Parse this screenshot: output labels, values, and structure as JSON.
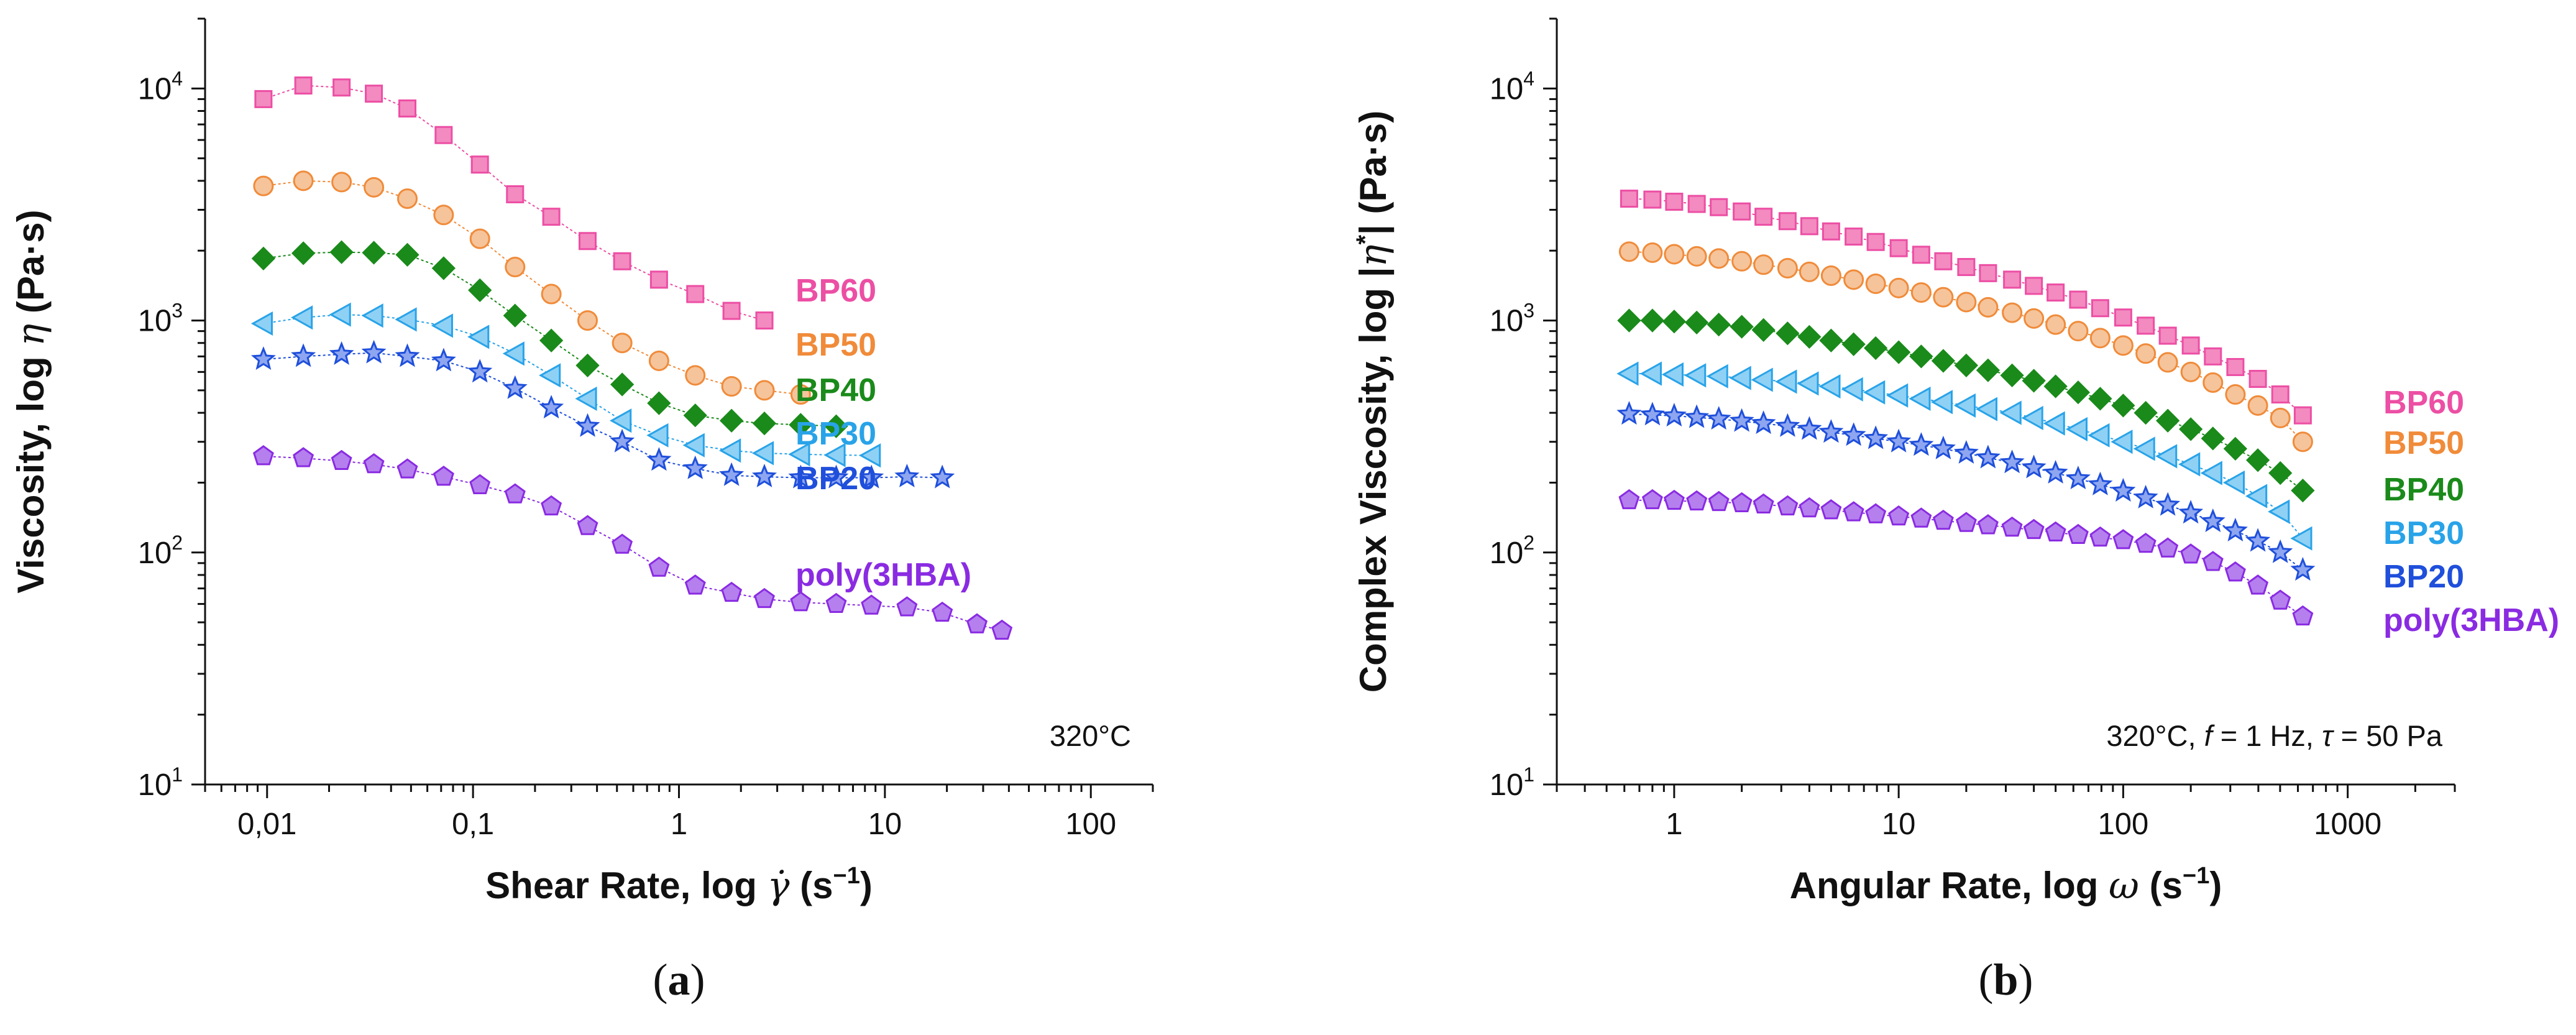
{
  "chart_data": [
    {
      "type": "scatter",
      "panel_label": "a",
      "xlabel": "Shear Rate, log γ̇ (s⁻¹)",
      "ylabel": "Viscosity, log η (Pa·s)",
      "xscale": "log",
      "yscale": "log",
      "xlim": [
        0.005,
        200
      ],
      "ylim": [
        10,
        20000
      ],
      "x_ticks": [
        0.01,
        0.1,
        1,
        10,
        100
      ],
      "x_tick_labels": [
        "0,01",
        "0,1",
        "1",
        "10",
        "100"
      ],
      "y_ticks": [
        10,
        100,
        1000,
        10000
      ],
      "y_tick_labels": [
        "10",
        "10",
        "10",
        "10"
      ],
      "y_tick_exponents": [
        "1",
        "2",
        "3",
        "4"
      ],
      "annotation": "320°C",
      "series": [
        {
          "name": "BP60",
          "marker": "square",
          "color": "#ec4fa4",
          "fill": "#f38ac0",
          "x": [
            0.0096,
            0.015,
            0.023,
            0.033,
            0.048,
            0.072,
            0.108,
            0.16,
            0.24,
            0.36,
            0.53,
            0.8,
            1.2,
            1.8,
            2.6
          ],
          "y": [
            9000,
            10300,
            10100,
            9500,
            8200,
            6300,
            4700,
            3500,
            2800,
            2200,
            1800,
            1500,
            1300,
            1100,
            1000
          ]
        },
        {
          "name": "BP50",
          "marker": "circle",
          "color": "#f08b3a",
          "fill": "#f5c49b",
          "x": [
            0.0096,
            0.015,
            0.023,
            0.033,
            0.048,
            0.072,
            0.108,
            0.16,
            0.24,
            0.36,
            0.53,
            0.8,
            1.2,
            1.8,
            2.6,
            3.9
          ],
          "y": [
            3800,
            4000,
            3950,
            3750,
            3350,
            2850,
            2250,
            1700,
            1300,
            1000,
            800,
            670,
            580,
            520,
            500,
            480
          ]
        },
        {
          "name": "BP40",
          "marker": "diamond",
          "color": "#1a8a1a",
          "fill": "#1a8a1a",
          "x": [
            0.0096,
            0.015,
            0.023,
            0.033,
            0.048,
            0.072,
            0.108,
            0.16,
            0.24,
            0.36,
            0.53,
            0.8,
            1.2,
            1.8,
            2.6,
            3.9,
            5.8
          ],
          "y": [
            1850,
            1950,
            1970,
            1960,
            1920,
            1680,
            1350,
            1050,
            820,
            640,
            530,
            440,
            390,
            370,
            360,
            355,
            350
          ]
        },
        {
          "name": "BP30",
          "marker": "triangle-left",
          "color": "#29a3e8",
          "fill": "#8fd1f5",
          "x": [
            0.0096,
            0.015,
            0.023,
            0.033,
            0.048,
            0.072,
            0.108,
            0.16,
            0.24,
            0.36,
            0.53,
            0.8,
            1.2,
            1.8,
            2.6,
            3.9,
            5.8,
            8.6
          ],
          "y": [
            970,
            1030,
            1060,
            1050,
            1010,
            950,
            850,
            720,
            580,
            460,
            370,
            320,
            290,
            275,
            268,
            265,
            263,
            262
          ]
        },
        {
          "name": "BP20",
          "marker": "star",
          "color": "#1f4fdb",
          "fill": "#8ea6f0",
          "x": [
            0.0096,
            0.015,
            0.023,
            0.033,
            0.048,
            0.072,
            0.108,
            0.16,
            0.24,
            0.36,
            0.53,
            0.8,
            1.2,
            1.8,
            2.6,
            3.9,
            5.8,
            8.6,
            12.8,
            19
          ],
          "y": [
            680,
            700,
            715,
            725,
            700,
            670,
            600,
            510,
            420,
            350,
            300,
            250,
            230,
            215,
            212,
            210,
            210,
            210,
            212,
            210
          ]
        },
        {
          "name": "poly(3HBA)",
          "marker": "pentagon",
          "color": "#8a2be2",
          "fill": "#b580ee",
          "x": [
            0.0096,
            0.015,
            0.023,
            0.033,
            0.048,
            0.072,
            0.108,
            0.16,
            0.24,
            0.36,
            0.53,
            0.8,
            1.2,
            1.8,
            2.6,
            3.9,
            5.8,
            8.6,
            12.8,
            19,
            28,
            37
          ],
          "y": [
            260,
            255,
            248,
            240,
            228,
            212,
            195,
            178,
            158,
            130,
            108,
            86,
            72,
            67,
            63,
            61,
            60,
            59,
            58,
            55,
            49,
            46
          ]
        }
      ]
    },
    {
      "type": "scatter",
      "panel_label": "b",
      "xlabel": "Angular Rate, log ω (s⁻¹)",
      "ylabel": "Complex Viscosity, log |η*| (Pa·s)",
      "xscale": "log",
      "yscale": "log",
      "xlim": [
        0.3,
        3000
      ],
      "ylim": [
        10,
        20000
      ],
      "x_ticks": [
        1,
        10,
        100,
        1000
      ],
      "x_tick_labels": [
        "1",
        "10",
        "100",
        "1000"
      ],
      "y_ticks": [
        10,
        100,
        1000,
        10000
      ],
      "y_tick_labels": [
        "10",
        "10",
        "10",
        "10"
      ],
      "y_tick_exponents": [
        "1",
        "2",
        "3",
        "4"
      ],
      "annotation": "320°C, f = 1 Hz, τ = 50 Pa",
      "series": [
        {
          "name": "BP60",
          "marker": "square",
          "color": "#ec4fa4",
          "fill": "#f38ac0",
          "x": [
            0.63,
            0.8,
            1.0,
            1.26,
            1.58,
            2.0,
            2.5,
            3.2,
            4.0,
            5.0,
            6.3,
            7.9,
            10,
            12.6,
            15.8,
            20,
            25,
            32,
            40,
            50,
            63,
            79,
            100,
            126,
            158,
            200,
            251,
            316,
            398,
            501,
            631
          ],
          "y": [
            3350,
            3320,
            3250,
            3180,
            3080,
            2950,
            2800,
            2680,
            2550,
            2420,
            2300,
            2180,
            2050,
            1920,
            1800,
            1700,
            1600,
            1500,
            1410,
            1320,
            1230,
            1130,
            1030,
            950,
            860,
            780,
            700,
            630,
            560,
            480,
            390
          ]
        },
        {
          "name": "BP50",
          "marker": "circle",
          "color": "#f08b3a",
          "fill": "#f5c49b",
          "x": [
            0.63,
            0.8,
            1.0,
            1.26,
            1.58,
            2.0,
            2.5,
            3.2,
            4.0,
            5.0,
            6.3,
            7.9,
            10,
            12.6,
            15.8,
            20,
            25,
            32,
            40,
            50,
            63,
            79,
            100,
            126,
            158,
            200,
            251,
            316,
            398,
            501,
            631
          ],
          "y": [
            1980,
            1960,
            1930,
            1890,
            1850,
            1800,
            1740,
            1680,
            1620,
            1560,
            1500,
            1440,
            1380,
            1320,
            1260,
            1200,
            1140,
            1080,
            1020,
            960,
            900,
            840,
            780,
            720,
            660,
            600,
            540,
            480,
            430,
            380,
            300
          ]
        },
        {
          "name": "BP40",
          "marker": "diamond",
          "color": "#1a8a1a",
          "fill": "#1a8a1a",
          "x": [
            0.63,
            0.8,
            1.0,
            1.26,
            1.58,
            2.0,
            2.5,
            3.2,
            4.0,
            5.0,
            6.3,
            7.9,
            10,
            12.6,
            15.8,
            20,
            25,
            32,
            40,
            50,
            63,
            79,
            100,
            126,
            158,
            200,
            251,
            316,
            398,
            501,
            631
          ],
          "y": [
            1000,
            1000,
            990,
            980,
            960,
            940,
            910,
            880,
            850,
            820,
            790,
            760,
            730,
            700,
            670,
            640,
            610,
            580,
            550,
            520,
            490,
            460,
            430,
            400,
            370,
            340,
            310,
            280,
            250,
            220,
            185
          ]
        },
        {
          "name": "BP30",
          "marker": "triangle-left",
          "color": "#29a3e8",
          "fill": "#8fd1f5",
          "x": [
            0.63,
            0.8,
            1.0,
            1.26,
            1.58,
            2.0,
            2.5,
            3.2,
            4.0,
            5.0,
            6.3,
            7.9,
            10,
            12.6,
            15.8,
            20,
            25,
            32,
            40,
            50,
            63,
            79,
            100,
            126,
            158,
            200,
            251,
            316,
            398,
            501,
            631
          ],
          "y": [
            590,
            590,
            585,
            580,
            575,
            565,
            555,
            545,
            535,
            520,
            505,
            490,
            475,
            460,
            445,
            430,
            415,
            400,
            380,
            360,
            340,
            320,
            300,
            280,
            260,
            240,
            220,
            200,
            175,
            150,
            115
          ]
        },
        {
          "name": "BP20",
          "marker": "star",
          "color": "#1f4fdb",
          "fill": "#8ea6f0",
          "x": [
            0.63,
            0.8,
            1.0,
            1.26,
            1.58,
            2.0,
            2.5,
            3.2,
            4.0,
            5.0,
            6.3,
            7.9,
            10,
            12.6,
            15.8,
            20,
            25,
            32,
            40,
            50,
            63,
            79,
            100,
            126,
            158,
            200,
            251,
            316,
            398,
            501,
            631
          ],
          "y": [
            395,
            392,
            388,
            382,
            376,
            368,
            360,
            350,
            340,
            330,
            320,
            310,
            300,
            290,
            280,
            268,
            256,
            244,
            232,
            220,
            208,
            196,
            184,
            172,
            160,
            148,
            136,
            124,
            112,
            100,
            84
          ]
        },
        {
          "name": "poly(3HBA)",
          "marker": "pentagon",
          "color": "#8a2be2",
          "fill": "#b580ee",
          "x": [
            0.63,
            0.8,
            1.0,
            1.26,
            1.58,
            2.0,
            2.5,
            3.2,
            4.0,
            5.0,
            6.3,
            7.9,
            10,
            12.6,
            15.8,
            20,
            25,
            32,
            40,
            50,
            63,
            79,
            100,
            126,
            158,
            200,
            251,
            316,
            398,
            501,
            631
          ],
          "y": [
            168,
            168,
            167,
            166,
            165,
            163,
            161,
            158,
            155,
            152,
            149,
            146,
            143,
            140,
            137,
            134,
            131,
            128,
            125,
            122,
            119,
            116,
            113,
            109,
            104,
            98,
            91,
            82,
            72,
            62,
            53
          ]
        }
      ]
    }
  ]
}
